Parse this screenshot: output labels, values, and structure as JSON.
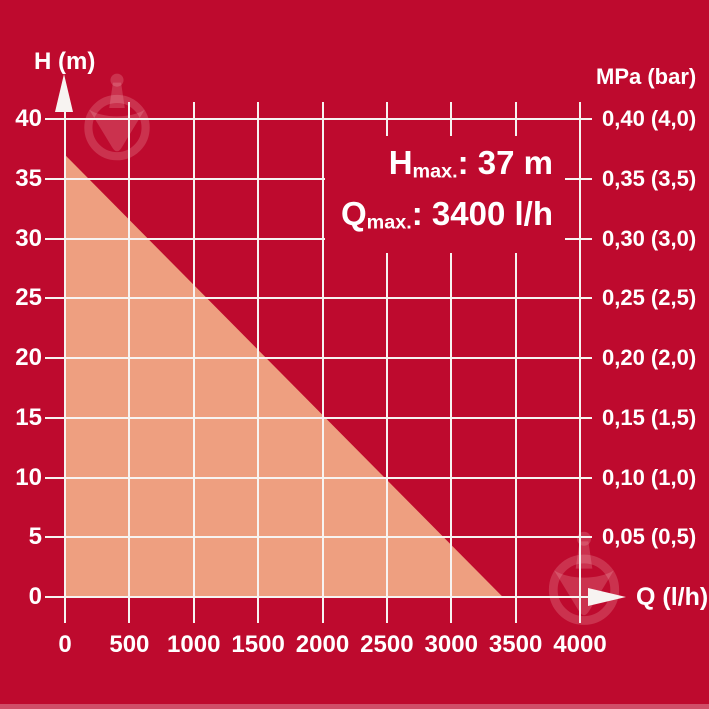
{
  "colors": {
    "background": "#BE0A2E",
    "area_fill": "#EE9F80",
    "grid": "#F7F3F1",
    "text": "#FFFFFF",
    "watermark": "rgba(255,210,210,0.20)",
    "bottom_strip": "rgba(255,255,255,0.28)"
  },
  "chart_data": {
    "type": "area",
    "grid": true,
    "h_max_m": 37,
    "q_max_lh": 3400,
    "x_axis": {
      "label": "Q (l/h)",
      "range": [
        0,
        4000
      ],
      "ticks": [
        {
          "value": 0,
          "label": "0"
        },
        {
          "value": 500,
          "label": "500"
        },
        {
          "value": 1000,
          "label": "1000"
        },
        {
          "value": 1500,
          "label": "1500"
        },
        {
          "value": 2000,
          "label": "2000"
        },
        {
          "value": 2500,
          "label": "2500"
        },
        {
          "value": 3000,
          "label": "3000"
        },
        {
          "value": 3500,
          "label": "3500"
        },
        {
          "value": 4000,
          "label": "4000"
        }
      ]
    },
    "y_axis_left": {
      "label": "H (m)",
      "range": [
        0,
        40
      ],
      "ticks": [
        {
          "value": 40,
          "label": "40"
        },
        {
          "value": 35,
          "label": "35"
        },
        {
          "value": 30,
          "label": "30"
        },
        {
          "value": 25,
          "label": "25"
        },
        {
          "value": 20,
          "label": "20"
        },
        {
          "value": 15,
          "label": "15"
        },
        {
          "value": 10,
          "label": "10"
        },
        {
          "value": 5,
          "label": "5"
        },
        {
          "value": 0,
          "label": "0"
        }
      ]
    },
    "y_axis_right": {
      "label": "MPa (bar)",
      "ticks": [
        {
          "value_m": 40,
          "label": "0,40 (4,0)"
        },
        {
          "value_m": 35,
          "label": "0,35 (3,5)"
        },
        {
          "value_m": 30,
          "label": "0,30 (3,0)"
        },
        {
          "value_m": 25,
          "label": "0,25 (2,5)"
        },
        {
          "value_m": 20,
          "label": "0,20 (2,0)"
        },
        {
          "value_m": 15,
          "label": "0,15 (1,5)"
        },
        {
          "value_m": 10,
          "label": "0,10 (1,0)"
        },
        {
          "value_m": 5,
          "label": "0,05 (0,5)"
        }
      ]
    },
    "series": [
      {
        "name": "pump-operating-range",
        "type": "filled-area",
        "points_q_h": [
          [
            0,
            37
          ],
          [
            3400,
            0
          ],
          [
            0,
            0
          ]
        ]
      }
    ],
    "annotation": {
      "h_base": "H",
      "h_sub": "max.",
      "h_rest": ": 37 m",
      "q_base": "Q",
      "q_sub": "max.",
      "q_rest": ": 3400 l/h"
    }
  }
}
